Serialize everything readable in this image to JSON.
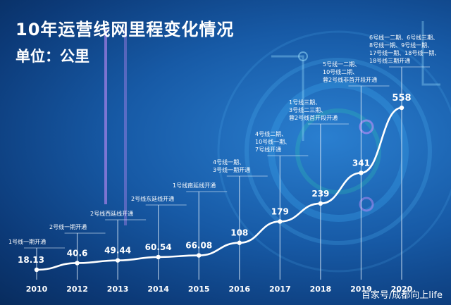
{
  "title": "10年运营线网里程变化情况",
  "unit": "单位：公里",
  "watermark": "百家号/成都向上life",
  "colors": {
    "line": "#ffffff",
    "value_text": "#ffffff",
    "axis_text": "#ffffff",
    "leader": "#dbe9f7",
    "accent": "#e8b8ff"
  },
  "chart_data": {
    "type": "line",
    "title": "10年运营线网里程变化情况",
    "ylabel": "单位：公里",
    "xlabel": "",
    "x": [
      "2010",
      "2012",
      "2013",
      "2014",
      "2015",
      "2016",
      "2017",
      "2018",
      "2019",
      "2020"
    ],
    "values": [
      18.13,
      40.6,
      49.44,
      60.54,
      66.08,
      108,
      179,
      239,
      341,
      558
    ],
    "value_labels": [
      "18.13",
      "40.6",
      "49.44",
      "60.54",
      "66.08",
      "108",
      "179",
      "239",
      "341",
      "558"
    ],
    "annotations": [
      [
        "1号线一期开通"
      ],
      [
        "2号线一期开通"
      ],
      [
        "2号线西延线开通"
      ],
      [
        "2号线东延线开通"
      ],
      [
        "1号线南延线开通"
      ],
      [
        "4号线一期、",
        "3号线一期开通"
      ],
      [
        "4号线二期、",
        "10号线一期、",
        "7号线开通"
      ],
      [
        "1号线三期、",
        "3号线二三期、",
        "蓉2号线首开段开通"
      ],
      [
        "5号线一二期、",
        "10号线二期、",
        "蓉2号线非首开段开通"
      ],
      [
        "6号线一二期、6号线三期、",
        "8号线一期、9号线一期、",
        "17号线一期、18号线一期、",
        "18号线三期开通"
      ]
    ],
    "grid": false,
    "legend": "none"
  }
}
